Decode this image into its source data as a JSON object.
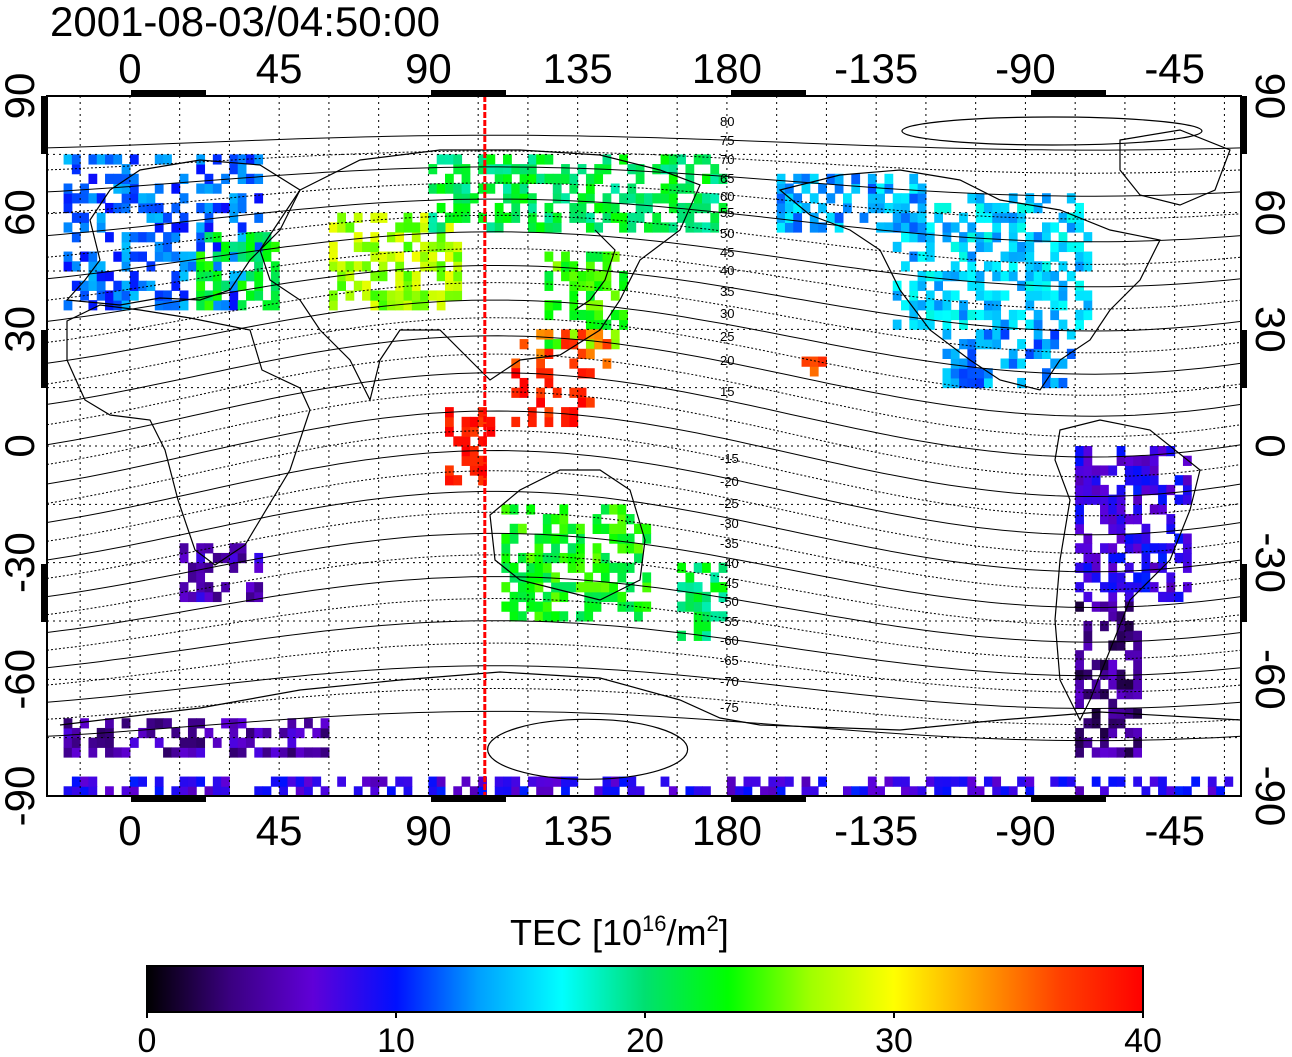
{
  "title": "2001-08-03/04:50:00",
  "top_lon_labels": [
    "0",
    "45",
    "90",
    "135",
    "180",
    "-135",
    "-90",
    "-45"
  ],
  "bottom_lon_labels": [
    "0",
    "45",
    "90",
    "135",
    "180",
    "-135",
    "-90",
    "-45"
  ],
  "left_lat_labels": [
    "90",
    "60",
    "30",
    "0",
    "-30",
    "-60",
    "-90"
  ],
  "right_lat_labels": [
    "90",
    "60",
    "30",
    "0",
    "-30",
    "-60",
    "-90"
  ],
  "contour_labels": {
    "north": [
      "80",
      "75",
      "70",
      "65",
      "60",
      "55",
      "50",
      "45",
      "40",
      "35",
      "30",
      "25",
      "20",
      "15"
    ],
    "south": [
      "-15",
      "-20",
      "-25",
      "-30",
      "-35",
      "-40",
      "-45",
      "-50",
      "-55",
      "-60",
      "-65",
      "-70",
      "-75"
    ]
  },
  "colorbar": {
    "title_main": "TEC  [10",
    "title_sup1": "16",
    "title_mid": "/m",
    "title_sup2": "2",
    "title_end": "]",
    "ticks": [
      "0",
      "10",
      "20",
      "30",
      "40"
    ],
    "range": [
      0,
      40
    ],
    "stops": [
      "#000000",
      "#3a0080",
      "#6000d8",
      "#0010ff",
      "#00a0ff",
      "#00ffff",
      "#00e070",
      "#00ff00",
      "#a0ff00",
      "#ffff00",
      "#ffa000",
      "#ff4000",
      "#ff0000"
    ]
  },
  "meridian_marker": {
    "longitude": 107,
    "color": "#ff0000"
  },
  "map": {
    "lon_range": [
      -25,
      335
    ],
    "lat_range": [
      -90,
      90
    ],
    "grid_lon_step": 15,
    "grid_lat_step": 15
  },
  "tec_regions": [
    {
      "name": "europe",
      "lon": [
        -20,
        40
      ],
      "lat": [
        35,
        75
      ],
      "tec": 12
    },
    {
      "name": "europe-east",
      "lon": [
        20,
        45
      ],
      "lat": [
        35,
        55
      ],
      "tec": 22
    },
    {
      "name": "central-asia",
      "lon": [
        60,
        100
      ],
      "lat": [
        35,
        60
      ],
      "tec": 27
    },
    {
      "name": "japan",
      "lon": [
        125,
        150
      ],
      "lat": [
        25,
        50
      ],
      "tec": 24
    },
    {
      "name": "japan-south",
      "lon": [
        115,
        145
      ],
      "lat": [
        20,
        30
      ],
      "tec": 36
    },
    {
      "name": "philippines",
      "lon": [
        115,
        140
      ],
      "lat": [
        5,
        20
      ],
      "tec": 39
    },
    {
      "name": "indonesia",
      "lon": [
        95,
        110
      ],
      "lat": [
        -10,
        10
      ],
      "tec": 39
    },
    {
      "name": "australia",
      "lon": [
        112,
        155
      ],
      "lat": [
        -45,
        -15
      ],
      "tec": 23
    },
    {
      "name": "new-zealand",
      "lon": [
        165,
        180
      ],
      "lat": [
        -50,
        -30
      ],
      "tec": 21
    },
    {
      "name": "hawaii",
      "lon": [
        200,
        210
      ],
      "lat": [
        18,
        25
      ],
      "tec": 37
    },
    {
      "name": "north-america",
      "lon": [
        230,
        290
      ],
      "lat": [
        30,
        65
      ],
      "tec": 15
    },
    {
      "name": "north-america-south",
      "lon": [
        245,
        285
      ],
      "lat": [
        15,
        30
      ],
      "tec": 13
    },
    {
      "name": "south-america",
      "lon": [
        285,
        320
      ],
      "lat": [
        -40,
        0
      ],
      "tec": 8
    },
    {
      "name": "patagonia",
      "lon": [
        285,
        305
      ],
      "lat": [
        -80,
        -40
      ],
      "tec": 4
    },
    {
      "name": "antarctic-rim",
      "lon": [
        -20,
        60
      ],
      "lat": [
        -80,
        -70
      ],
      "tec": 5
    },
    {
      "name": "antarctic-bottom",
      "lon": [
        -20,
        335
      ],
      "lat": [
        -90,
        -86
      ],
      "tec": 8
    },
    {
      "name": "south-africa",
      "lon": [
        15,
        40
      ],
      "lat": [
        -40,
        -25
      ],
      "tec": 6
    },
    {
      "name": "siberia",
      "lon": [
        90,
        180
      ],
      "lat": [
        55,
        75
      ],
      "tec": 21
    },
    {
      "name": "alaska",
      "lon": [
        195,
        240
      ],
      "lat": [
        55,
        70
      ],
      "tec": 14
    }
  ]
}
